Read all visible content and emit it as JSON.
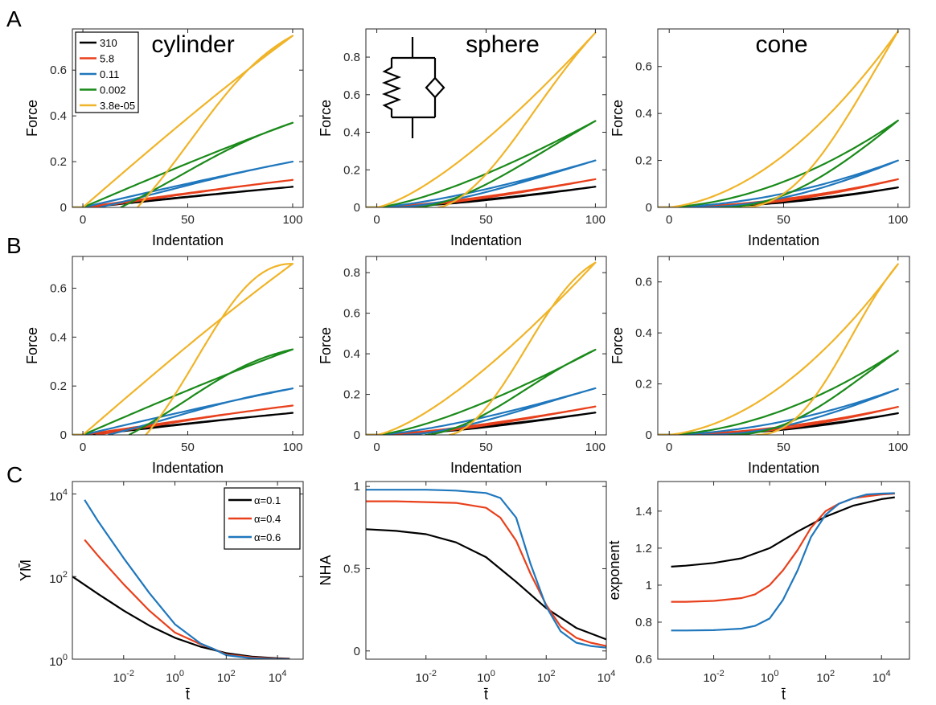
{
  "panel_labels": [
    "A",
    "B",
    "C"
  ],
  "colors": {
    "black": "#000000",
    "red": "#e8401c",
    "blue": "#1f77bd",
    "green": "#1a8a1a",
    "yellow": "#f0b428",
    "axis": "#262626",
    "tick_text": "#262626"
  },
  "chart_data": [
    {
      "id": "A-cylinder",
      "type": "line",
      "title": "cylinder",
      "xlabel": "Indentation",
      "ylabel": "Force",
      "xlim": [
        -5,
        105
      ],
      "ylim": [
        0,
        0.78
      ],
      "xticks": [
        0,
        50,
        100
      ],
      "xticklabels": [
        "0",
        "50",
        "100"
      ],
      "yticks": [
        0,
        0.2,
        0.4,
        0.6
      ],
      "yticklabels": [
        "0",
        "0.2",
        "0.4",
        "0.6"
      ],
      "legend": {
        "placement": "top-left",
        "entries": [
          "310",
          "5.8",
          "0.11",
          "0.002",
          "3.8e-05"
        ]
      },
      "loops": [
        {
          "name": "310",
          "color": "black",
          "peak": 0.09,
          "zero_start": 2,
          "n": 1.0,
          "dip": 0.01
        },
        {
          "name": "5.8",
          "color": "red",
          "peak": 0.12,
          "zero_start": 4,
          "n": 1.0,
          "dip": 0.02
        },
        {
          "name": "0.11",
          "color": "blue",
          "peak": 0.2,
          "zero_start": 8,
          "n": 1.0,
          "dip": 0.03
        },
        {
          "name": "0.002",
          "color": "green",
          "peak": 0.37,
          "zero_start": 18,
          "n": 1.0,
          "dip": 0.05
        },
        {
          "name": "3.8e-05",
          "color": "yellow",
          "peak": 0.75,
          "zero_start": 26,
          "n": 1.0,
          "dip": 0.08
        }
      ]
    },
    {
      "id": "A-sphere",
      "type": "line",
      "title": "sphere",
      "xlabel": "Indentation",
      "ylabel": "Force",
      "xlim": [
        -5,
        105
      ],
      "ylim": [
        0,
        0.95
      ],
      "xticks": [
        0,
        50,
        100
      ],
      "xticklabels": [
        "0",
        "50",
        "100"
      ],
      "yticks": [
        0,
        0.2,
        0.4,
        0.6,
        0.8
      ],
      "yticklabels": [
        "0",
        "0.2",
        "0.4",
        "0.6",
        "0.8"
      ],
      "loops": [
        {
          "name": "310",
          "color": "black",
          "peak": 0.11,
          "zero_start": 2,
          "n": 1.5,
          "dip": 0.01
        },
        {
          "name": "5.8",
          "color": "red",
          "peak": 0.15,
          "zero_start": 4,
          "n": 1.5,
          "dip": 0.02
        },
        {
          "name": "0.11",
          "color": "blue",
          "peak": 0.25,
          "zero_start": 8,
          "n": 1.5,
          "dip": 0.03
        },
        {
          "name": "0.002",
          "color": "green",
          "peak": 0.46,
          "zero_start": 18,
          "n": 1.5,
          "dip": 0.05
        },
        {
          "name": "3.8e-05",
          "color": "yellow",
          "peak": 0.93,
          "zero_start": 28,
          "n": 1.5,
          "dip": 0.08
        }
      ]
    },
    {
      "id": "A-cone",
      "type": "line",
      "title": "cone",
      "xlabel": "Indentation",
      "ylabel": "Force",
      "xlim": [
        -5,
        105
      ],
      "ylim": [
        0,
        0.76
      ],
      "xticks": [
        0,
        50,
        100
      ],
      "xticklabels": [
        "0",
        "50",
        "100"
      ],
      "yticks": [
        0,
        0.2,
        0.4,
        0.6
      ],
      "yticklabels": [
        "0",
        "0.2",
        "0.4",
        "0.6"
      ],
      "loops": [
        {
          "name": "310",
          "color": "black",
          "peak": 0.085,
          "zero_start": 2,
          "n": 2.0,
          "dip": 0.01
        },
        {
          "name": "5.8",
          "color": "red",
          "peak": 0.12,
          "zero_start": 5,
          "n": 2.0,
          "dip": 0.02
        },
        {
          "name": "0.11",
          "color": "blue",
          "peak": 0.2,
          "zero_start": 10,
          "n": 2.0,
          "dip": 0.03
        },
        {
          "name": "0.002",
          "color": "green",
          "peak": 0.37,
          "zero_start": 22,
          "n": 2.0,
          "dip": 0.05
        },
        {
          "name": "3.8e-05",
          "color": "yellow",
          "peak": 0.75,
          "zero_start": 32,
          "n": 2.0,
          "dip": 0.08
        }
      ]
    },
    {
      "id": "B-cylinder",
      "type": "line",
      "xlabel": "Indentation",
      "ylabel": "Force",
      "xlim": [
        -5,
        105
      ],
      "ylim": [
        0,
        0.73
      ],
      "xticks": [
        0,
        50,
        100
      ],
      "xticklabels": [
        "0",
        "50",
        "100"
      ],
      "yticks": [
        0,
        0.2,
        0.4,
        0.6
      ],
      "yticklabels": [
        "0",
        "0.2",
        "0.4",
        "0.6"
      ],
      "loops": [
        {
          "name": "310",
          "color": "black",
          "peak": 0.09,
          "zero_start": 3,
          "n": 1.0,
          "dip": 0.015
        },
        {
          "name": "5.8",
          "color": "red",
          "peak": 0.12,
          "zero_start": 6,
          "n": 1.0,
          "dip": 0.03
        },
        {
          "name": "0.11",
          "color": "blue",
          "peak": 0.19,
          "zero_start": 12,
          "n": 1.0,
          "dip": 0.05
        },
        {
          "name": "0.002",
          "color": "green",
          "peak": 0.35,
          "zero_start": 22,
          "n": 1.0,
          "dip": 0.09
        },
        {
          "name": "3.8e-05",
          "color": "yellow",
          "peak": 0.7,
          "zero_start": 30,
          "n": 1.0,
          "dip": 0.16
        }
      ]
    },
    {
      "id": "B-sphere",
      "type": "line",
      "xlabel": "Indentation",
      "ylabel": "Force",
      "xlim": [
        -5,
        105
      ],
      "ylim": [
        0,
        0.88
      ],
      "xticks": [
        0,
        50,
        100
      ],
      "xticklabels": [
        "0",
        "50",
        "100"
      ],
      "yticks": [
        0,
        0.2,
        0.4,
        0.6,
        0.8
      ],
      "yticklabels": [
        "0",
        "0.2",
        "0.4",
        "0.6",
        "0.8"
      ],
      "loops": [
        {
          "name": "310",
          "color": "black",
          "peak": 0.11,
          "zero_start": 3,
          "n": 1.5,
          "dip": 0.015
        },
        {
          "name": "5.8",
          "color": "red",
          "peak": 0.14,
          "zero_start": 6,
          "n": 1.5,
          "dip": 0.03
        },
        {
          "name": "0.11",
          "color": "blue",
          "peak": 0.23,
          "zero_start": 12,
          "n": 1.5,
          "dip": 0.05
        },
        {
          "name": "0.002",
          "color": "green",
          "peak": 0.42,
          "zero_start": 22,
          "n": 1.5,
          "dip": 0.09
        },
        {
          "name": "3.8e-05",
          "color": "yellow",
          "peak": 0.85,
          "zero_start": 33,
          "n": 1.5,
          "dip": 0.16
        }
      ]
    },
    {
      "id": "B-cone",
      "type": "line",
      "xlabel": "Indentation",
      "ylabel": "Force",
      "xlim": [
        -5,
        105
      ],
      "ylim": [
        0,
        0.7
      ],
      "xticks": [
        0,
        50,
        100
      ],
      "xticklabels": [
        "0",
        "50",
        "100"
      ],
      "yticks": [
        0,
        0.2,
        0.4,
        0.6
      ],
      "yticklabels": [
        "0",
        "0.2",
        "0.4",
        "0.6"
      ],
      "loops": [
        {
          "name": "310",
          "color": "black",
          "peak": 0.085,
          "zero_start": 3,
          "n": 2.0,
          "dip": 0.015
        },
        {
          "name": "5.8",
          "color": "red",
          "peak": 0.11,
          "zero_start": 7,
          "n": 2.0,
          "dip": 0.03
        },
        {
          "name": "0.11",
          "color": "blue",
          "peak": 0.18,
          "zero_start": 14,
          "n": 2.0,
          "dip": 0.05
        },
        {
          "name": "0.002",
          "color": "green",
          "peak": 0.33,
          "zero_start": 26,
          "n": 2.0,
          "dip": 0.09
        },
        {
          "name": "3.8e-05",
          "color": "yellow",
          "peak": 0.67,
          "zero_start": 38,
          "n": 2.0,
          "dip": 0.16
        }
      ]
    },
    {
      "id": "C-ym",
      "type": "line",
      "xscale": "log",
      "yscale": "log",
      "xlabel": "t̄",
      "ylabel": "YM̄",
      "xlim": [
        0.0001,
        100000
      ],
      "ylim": [
        1,
        20000
      ],
      "xticks": [
        0.01,
        1,
        100,
        10000
      ],
      "xticklabels": [
        [
          "10",
          "-2"
        ],
        [
          "10",
          "0"
        ],
        [
          "10",
          "2"
        ],
        [
          "10",
          "4"
        ]
      ],
      "yticks": [
        1,
        100,
        10000
      ],
      "yticklabels": [
        [
          "10",
          "0"
        ],
        [
          "10",
          "2"
        ],
        [
          "10",
          "4"
        ]
      ],
      "legend": {
        "placement": "top-right",
        "entries": [
          "α=0.1",
          "α=0.4",
          "α=0.6"
        ]
      },
      "series": [
        {
          "name": "α=0.1",
          "color": "black",
          "x": [
            0.0001,
            0.001,
            0.01,
            0.1,
            1,
            10,
            30,
            100,
            1000,
            10000,
            30000
          ],
          "y": [
            100,
            38,
            15,
            6.5,
            3.3,
            2.0,
            1.7,
            1.4,
            1.15,
            1.05,
            1.03
          ]
        },
        {
          "name": "α=0.4",
          "color": "red",
          "x": [
            0.0003,
            0.001,
            0.01,
            0.1,
            1,
            10,
            30,
            100,
            1000,
            10000,
            30000
          ],
          "y": [
            780,
            320,
            65,
            15,
            4.4,
            2.3,
            1.8,
            1.3,
            1.1,
            1.03,
            1.02
          ]
        },
        {
          "name": "α=0.6",
          "color": "blue",
          "x": [
            0.0003,
            0.001,
            0.01,
            0.1,
            1,
            10,
            30,
            100,
            1000,
            10000,
            30000
          ],
          "y": [
            7200,
            2200,
            280,
            40,
            7,
            2.4,
            1.8,
            1.25,
            1.05,
            1.01,
            1.0
          ]
        }
      ]
    },
    {
      "id": "C-nha",
      "type": "line",
      "xscale": "log",
      "xlabel": "t̄",
      "ylabel": "NHA",
      "xlim": [
        0.0001,
        10000
      ],
      "ylim": [
        -0.05,
        1.03
      ],
      "xticks": [
        0.01,
        1,
        100,
        10000
      ],
      "xticklabels": [
        [
          "10",
          "-2"
        ],
        [
          "10",
          "0"
        ],
        [
          "10",
          "2"
        ],
        [
          "10",
          "4"
        ]
      ],
      "yticks": [
        0,
        0.5,
        1
      ],
      "yticklabels": [
        "0",
        "0.5",
        "1"
      ],
      "series": [
        {
          "name": "α=0.1",
          "color": "black",
          "x": [
            0.0001,
            0.001,
            0.01,
            0.1,
            1,
            10,
            100,
            1000,
            10000
          ],
          "y": [
            0.74,
            0.73,
            0.71,
            0.66,
            0.57,
            0.42,
            0.26,
            0.14,
            0.07
          ]
        },
        {
          "name": "α=0.4",
          "color": "red",
          "x": [
            0.0001,
            0.001,
            0.01,
            0.1,
            1,
            3,
            10,
            30,
            100,
            300,
            1000,
            3000,
            10000
          ],
          "y": [
            0.91,
            0.91,
            0.905,
            0.9,
            0.87,
            0.81,
            0.67,
            0.47,
            0.28,
            0.15,
            0.08,
            0.05,
            0.03
          ]
        },
        {
          "name": "α=0.6",
          "color": "blue",
          "x": [
            0.0001,
            0.001,
            0.01,
            0.1,
            1,
            3,
            10,
            30,
            100,
            300,
            1000,
            3000,
            10000
          ],
          "y": [
            0.98,
            0.98,
            0.98,
            0.975,
            0.96,
            0.93,
            0.81,
            0.53,
            0.27,
            0.12,
            0.05,
            0.03,
            0.02
          ]
        }
      ]
    },
    {
      "id": "C-exponent",
      "type": "line",
      "xscale": "log",
      "xlabel": "t̄",
      "ylabel": "exponent",
      "xlim": [
        0.0001,
        100000
      ],
      "ylim": [
        0.6,
        1.56
      ],
      "xticks": [
        0.01,
        1,
        100,
        10000
      ],
      "xticklabels": [
        [
          "10",
          "-2"
        ],
        [
          "10",
          "0"
        ],
        [
          "10",
          "2"
        ],
        [
          "10",
          "4"
        ]
      ],
      "yticks": [
        0.6,
        0.8,
        1,
        1.2,
        1.4
      ],
      "yticklabels": [
        "0.6",
        "0.8",
        "1",
        "1.2",
        "1.4"
      ],
      "series": [
        {
          "name": "α=0.1",
          "color": "black",
          "x": [
            0.0003,
            0.001,
            0.01,
            0.1,
            1,
            10,
            100,
            1000,
            10000,
            30000
          ],
          "y": [
            1.1,
            1.105,
            1.12,
            1.145,
            1.2,
            1.29,
            1.37,
            1.43,
            1.465,
            1.475
          ]
        },
        {
          "name": "α=0.4",
          "color": "red",
          "x": [
            0.0003,
            0.001,
            0.01,
            0.1,
            0.3,
            1,
            3,
            10,
            30,
            100,
            300,
            1000,
            3000,
            10000,
            30000
          ],
          "y": [
            0.91,
            0.91,
            0.915,
            0.93,
            0.95,
            1.0,
            1.08,
            1.19,
            1.31,
            1.4,
            1.44,
            1.47,
            1.48,
            1.49,
            1.495
          ]
        },
        {
          "name": "α=0.6",
          "color": "blue",
          "x": [
            0.0003,
            0.001,
            0.01,
            0.1,
            0.3,
            1,
            3,
            10,
            30,
            100,
            300,
            1000,
            3000,
            10000,
            30000
          ],
          "y": [
            0.755,
            0.755,
            0.757,
            0.765,
            0.78,
            0.82,
            0.92,
            1.08,
            1.26,
            1.38,
            1.44,
            1.47,
            1.49,
            1.495,
            1.497
          ]
        }
      ]
    }
  ]
}
